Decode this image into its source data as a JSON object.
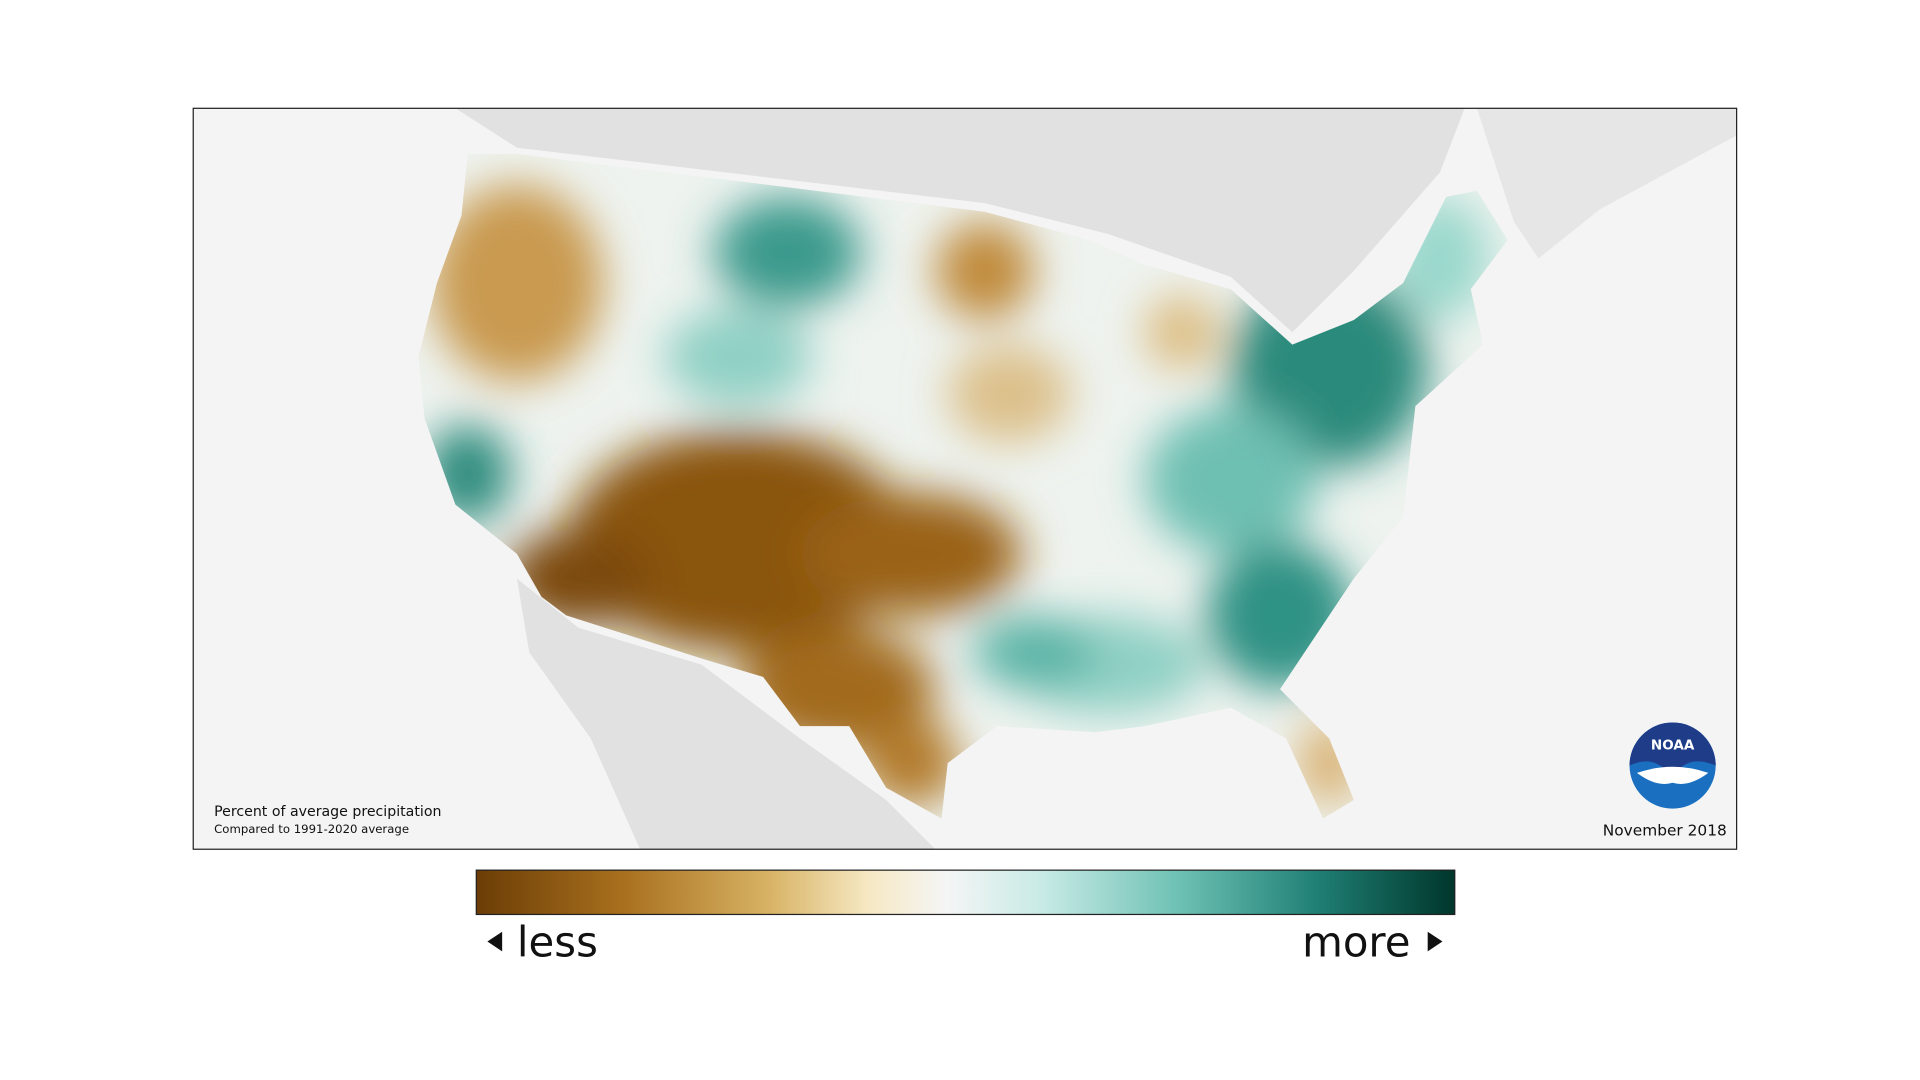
{
  "map": {
    "caption_title": "Percent of average precipitation",
    "caption_subtitle": "Compared to 1991-2020 average",
    "date": "November 2018",
    "logo_text": "NOAA"
  },
  "legend": {
    "low_label": "less",
    "high_label": "more"
  }
}
